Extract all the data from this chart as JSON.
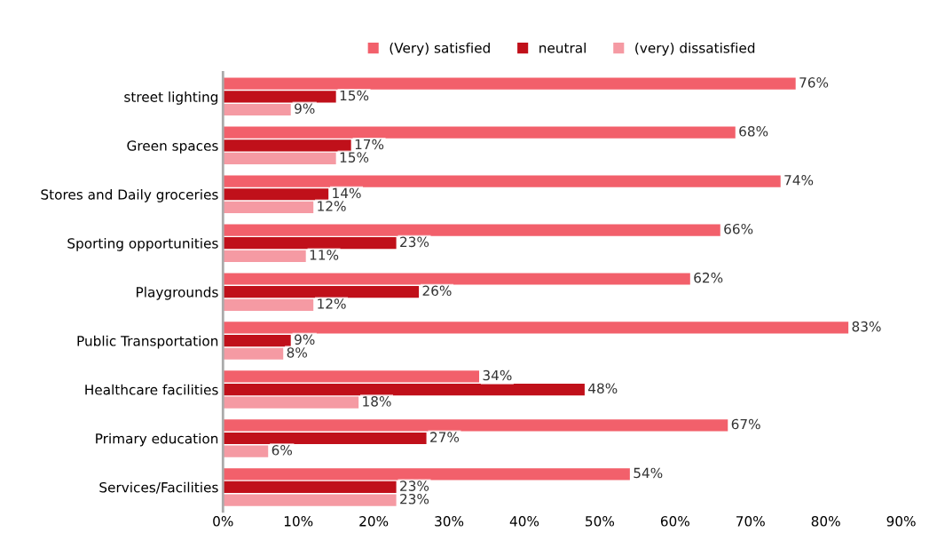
{
  "chart_data": {
    "type": "bar",
    "orientation": "horizontal",
    "categories": [
      "street lighting",
      "Green spaces",
      "Stores and Daily groceries",
      "Sporting opportunities",
      "Playgrounds",
      "Public Transportation",
      "Healthcare facilities",
      "Primary education",
      "Services/Facilities"
    ],
    "series": [
      {
        "name": "(Very) satisfied",
        "color": "#f2606b",
        "values": [
          76,
          68,
          74,
          66,
          62,
          83,
          34,
          67,
          54
        ],
        "value_labels": [
          "76%",
          "68%",
          "74%",
          "66%",
          "62%",
          "83%",
          "34%",
          "67%",
          "54%"
        ]
      },
      {
        "name": "neutral",
        "color": "#c0101a",
        "values": [
          15,
          17,
          14,
          23,
          26,
          9,
          48,
          27,
          23
        ],
        "value_labels": [
          "15%",
          "17%",
          "14%",
          "23%",
          "26%",
          "9%",
          "48%",
          "27%",
          "23%"
        ]
      },
      {
        "name": "(very) dissatisfied",
        "color": "#f59aa3",
        "values": [
          9,
          15,
          12,
          11,
          12,
          8,
          18,
          6,
          23
        ],
        "value_labels": [
          "9%",
          "15%",
          "12%",
          "11%",
          "12%",
          "8%",
          "18%",
          "6%",
          "23%"
        ]
      }
    ],
    "xlim": [
      0,
      90
    ],
    "xticks": [
      {
        "value": 0,
        "label": "0%"
      },
      {
        "value": 10,
        "label": "10%"
      },
      {
        "value": 20,
        "label": "20%"
      },
      {
        "value": 30,
        "label": "30%"
      },
      {
        "value": 40,
        "label": "40%"
      },
      {
        "value": 50,
        "label": "50%"
      },
      {
        "value": 60,
        "label": "60%"
      },
      {
        "value": 70,
        "label": "70%"
      },
      {
        "value": 80,
        "label": "80%"
      },
      {
        "value": 90,
        "label": "90%"
      }
    ],
    "grid": false,
    "legend": "top"
  }
}
